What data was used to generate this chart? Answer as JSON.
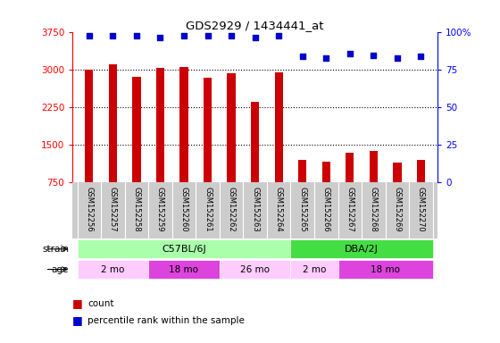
{
  "title": "GDS2929 / 1434441_at",
  "samples": [
    "GSM152256",
    "GSM152257",
    "GSM152258",
    "GSM152259",
    "GSM152260",
    "GSM152261",
    "GSM152262",
    "GSM152263",
    "GSM152264",
    "GSM152265",
    "GSM152266",
    "GSM152267",
    "GSM152268",
    "GSM152269",
    "GSM152270"
  ],
  "counts": [
    3010,
    3120,
    2870,
    3050,
    3060,
    2840,
    2940,
    2370,
    2960,
    1200,
    1170,
    1340,
    1390,
    1150,
    1210
  ],
  "percentile": [
    98,
    98,
    98,
    97,
    98,
    98,
    98,
    97,
    98,
    84,
    83,
    86,
    85,
    83,
    84
  ],
  "ylim_left": [
    750,
    3750
  ],
  "ylim_right": [
    0,
    100
  ],
  "yticks_left": [
    750,
    1500,
    2250,
    3000,
    3750
  ],
  "yticks_right": [
    0,
    25,
    50,
    75,
    100
  ],
  "bar_color": "#cc0000",
  "dot_color": "#0000cc",
  "strain_groups": [
    {
      "label": "C57BL/6J",
      "start": 0,
      "end": 9,
      "color": "#aaffaa"
    },
    {
      "label": "DBA/2J",
      "start": 9,
      "end": 15,
      "color": "#44dd44"
    }
  ],
  "age_groups": [
    {
      "label": "2 mo",
      "start": 0,
      "end": 3,
      "color": "#ffccff"
    },
    {
      "label": "18 mo",
      "start": 3,
      "end": 6,
      "color": "#dd44dd"
    },
    {
      "label": "26 mo",
      "start": 6,
      "end": 9,
      "color": "#ffccff"
    },
    {
      "label": "2 mo",
      "start": 9,
      "end": 11,
      "color": "#ffccff"
    },
    {
      "label": "18 mo",
      "start": 11,
      "end": 15,
      "color": "#dd44dd"
    }
  ],
  "bg_color": "#ffffff",
  "label_area_color": "#cccccc"
}
